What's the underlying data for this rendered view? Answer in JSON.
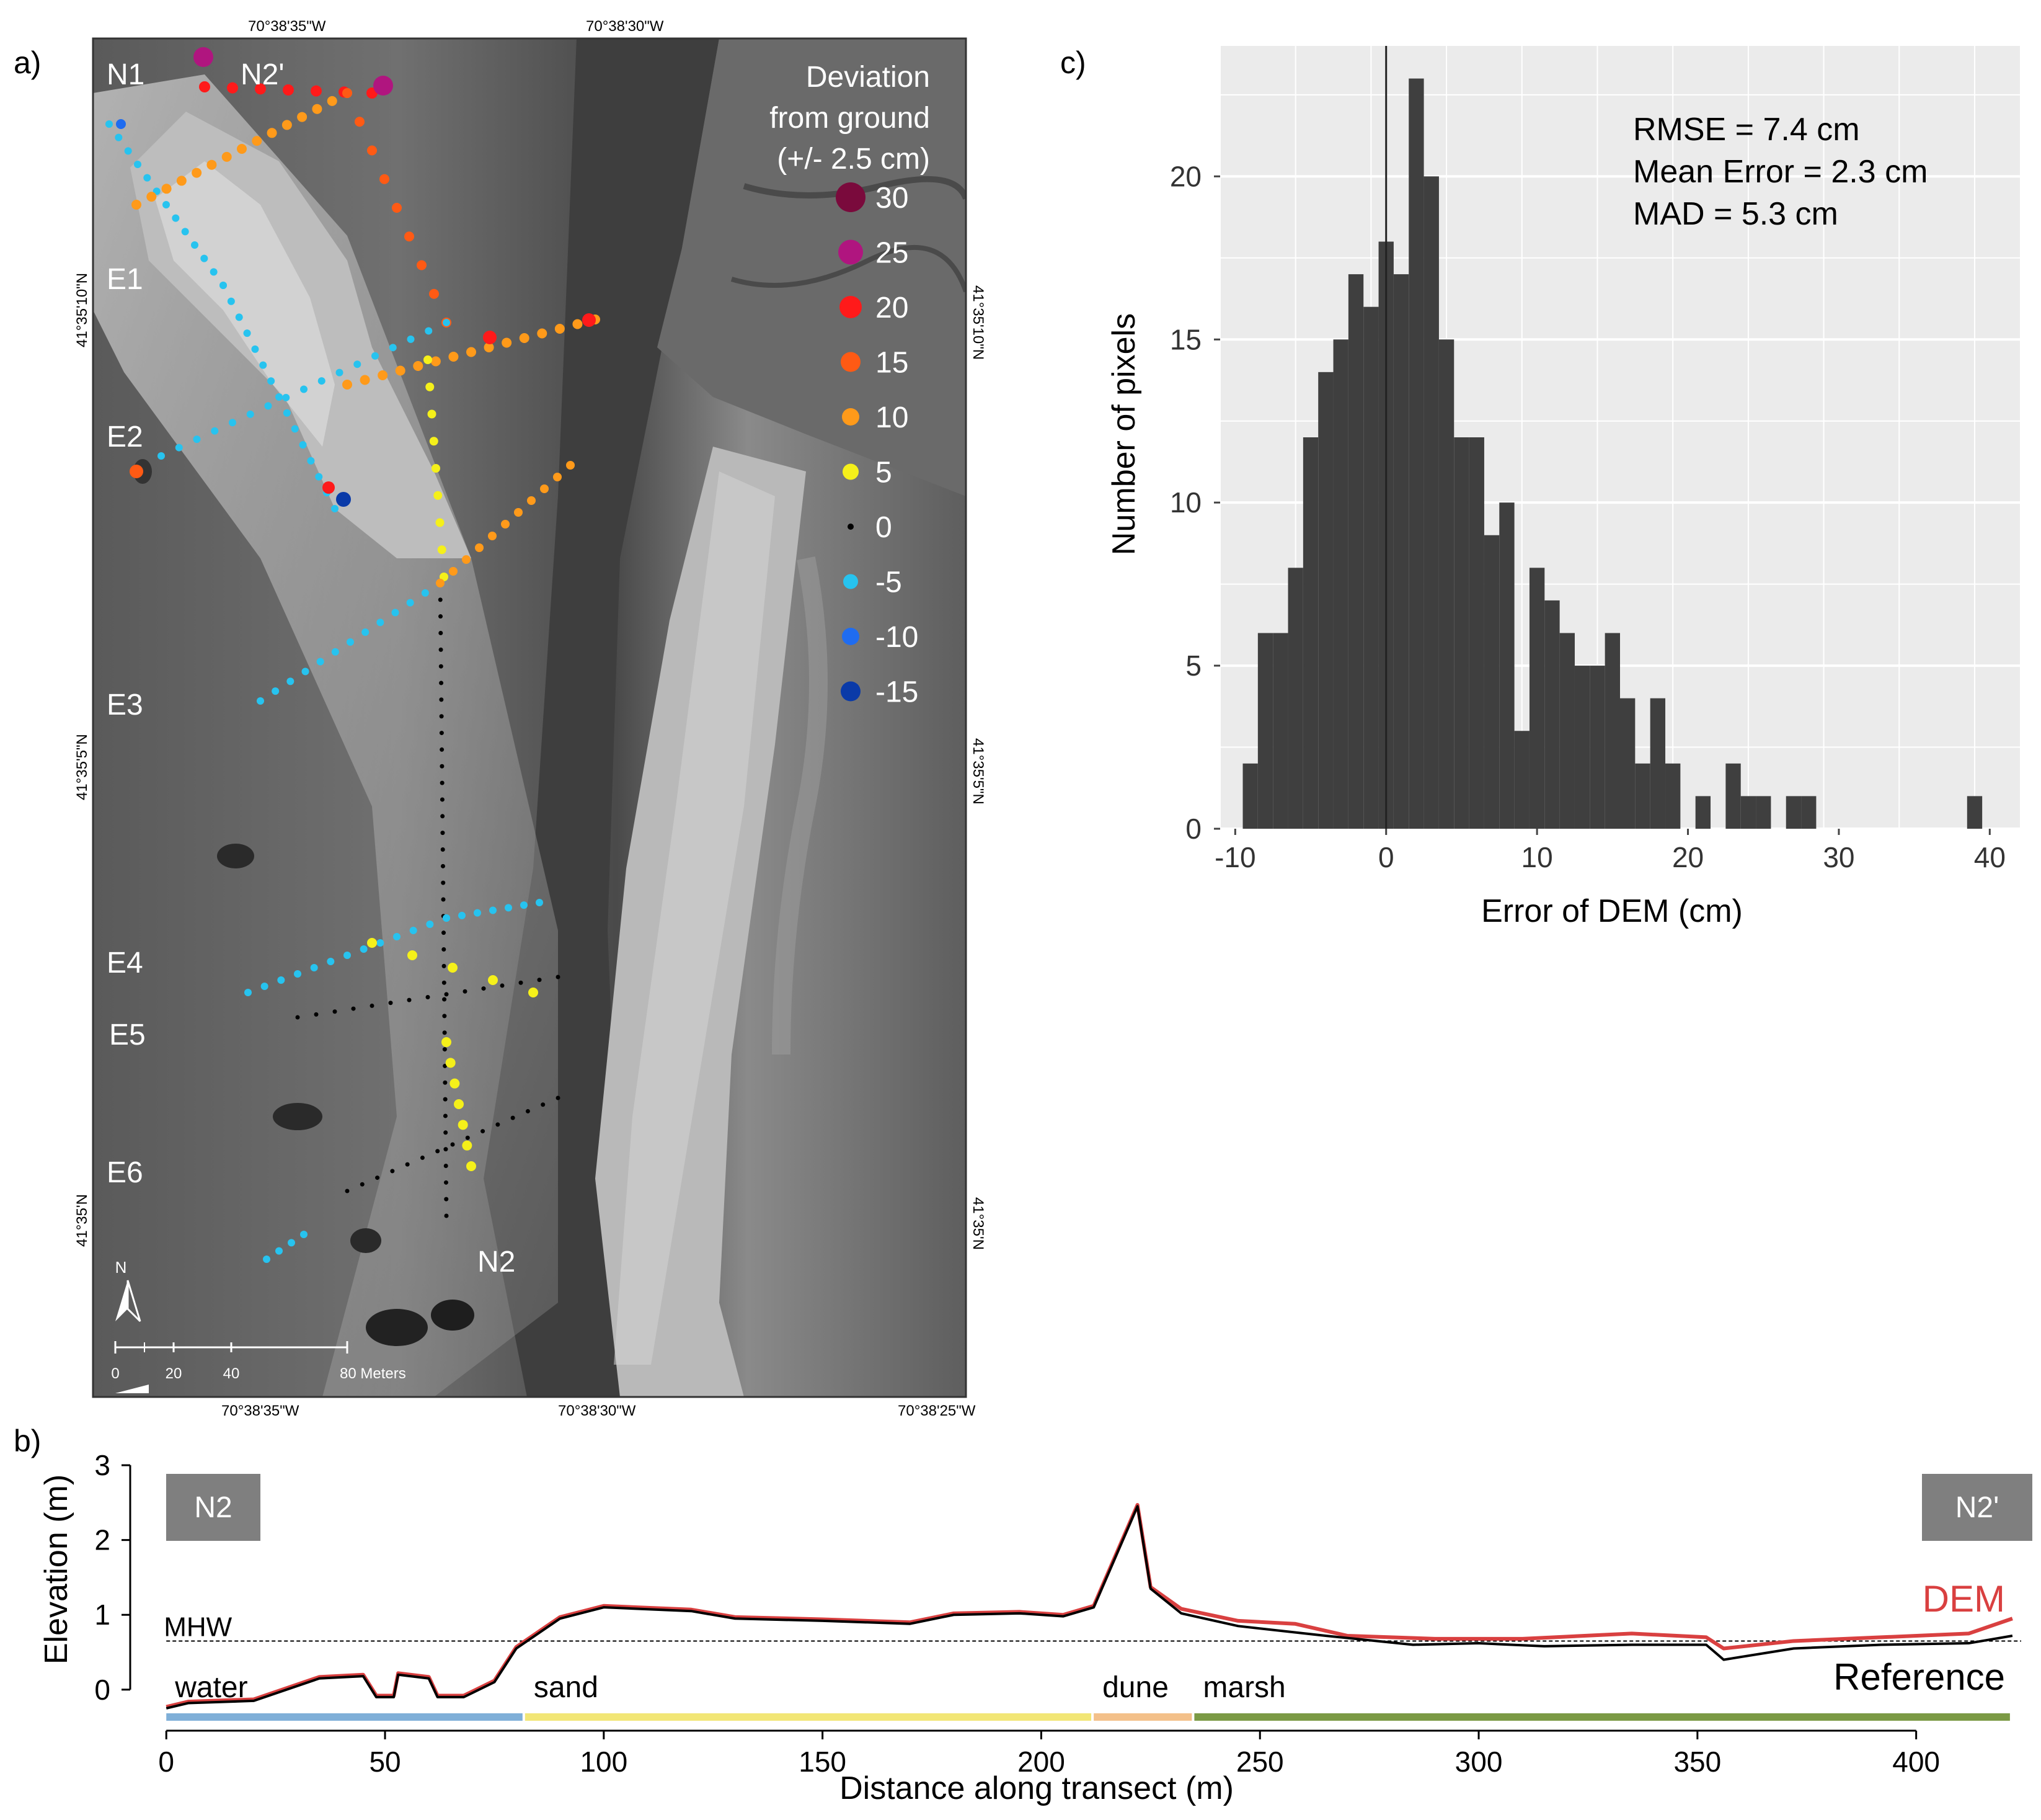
{
  "panel_labels": {
    "a": "a)",
    "b": "b)",
    "c": "c)"
  },
  "map": {
    "coords": {
      "top_left": "70°38'35\"W",
      "top_right": "70°38'30\"W",
      "bottom_left": "70°38'35\"W",
      "bottom_mid": "70°38'30\"W",
      "bottom_right": "70°38'25\"W",
      "left_top": "41°35'10\"N",
      "left_mid": "41°35'5\"N",
      "left_bottom": "41°35'N",
      "right_top": "41°35'10\"N",
      "right_mid": "41°35'5\"N",
      "right_bottom": "41°35'N"
    },
    "transect_labels": {
      "n1": "N1",
      "n2p": "N2'",
      "e1": "E1",
      "e2": "E2",
      "e3": "E3",
      "e4": "E4",
      "e5": "E5",
      "e6": "E6",
      "n2": "N2"
    },
    "legend": {
      "title1": "Deviation",
      "title2": "from ground",
      "title3": "(+/- 2.5 cm)",
      "items": [
        {
          "label": "30",
          "color": "#7a0a3c"
        },
        {
          "label": "25",
          "color": "#b0157f"
        },
        {
          "label": "20",
          "color": "#ff1a1a"
        },
        {
          "label": "15",
          "color": "#ff5a14"
        },
        {
          "label": "10",
          "color": "#ff9a1a"
        },
        {
          "label": "5",
          "color": "#f5f01a"
        },
        {
          "label": "0",
          "color": "#000000"
        },
        {
          "label": "-5",
          "color": "#27c3ef"
        },
        {
          "label": "-10",
          "color": "#1f6cf0"
        },
        {
          "label": "-15",
          "color": "#0a3aa8"
        }
      ]
    },
    "north_label": "N",
    "scale": {
      "ticks": [
        "0",
        "20",
        "40"
      ],
      "end_label": "80 Meters"
    }
  },
  "chart_data": [
    {
      "type": "histogram",
      "panel": "c",
      "xlabel": "Error of DEM (cm)",
      "ylabel": "Number of pixels",
      "xlim": [
        -11,
        42
      ],
      "ylim": [
        0,
        24
      ],
      "xticks": [
        "-10",
        "0",
        "10",
        "20",
        "30",
        "40"
      ],
      "yticks": [
        "0",
        "5",
        "10",
        "15",
        "20"
      ],
      "bin_width": 1,
      "bin_start": -9.5,
      "counts": [
        2,
        6,
        6,
        8,
        12,
        14,
        15,
        17,
        16,
        18,
        17,
        23,
        20,
        15,
        12,
        12,
        9,
        10,
        3,
        8,
        7,
        6,
        5,
        5,
        6,
        4,
        2,
        4,
        2,
        0,
        1,
        0,
        2,
        1,
        1,
        0,
        1,
        1,
        0,
        0,
        0,
        0,
        0,
        0,
        0,
        0,
        0,
        0,
        1
      ],
      "annotations": [
        "RMSE = 7.4 cm",
        "Mean Error = 2.3 cm",
        "MAD = 5.3 cm"
      ]
    },
    {
      "type": "line",
      "panel": "b",
      "xlabel": "Distance along transect (m)",
      "ylabel": "Elevation (m)",
      "xlim": [
        -4,
        424
      ],
      "ylim": [
        -0.3,
        3.1
      ],
      "xticks": [
        "0",
        "50",
        "100",
        "150",
        "200",
        "250",
        "300",
        "350",
        "400"
      ],
      "yticks": [
        "0",
        "1",
        "2",
        "3"
      ],
      "series": [
        {
          "name": "Reference",
          "color": "#000000",
          "x": [
            0,
            5,
            20,
            35,
            45,
            48,
            52,
            53,
            60,
            62,
            68,
            75,
            80,
            90,
            100,
            120,
            130,
            150,
            170,
            180,
            195,
            205,
            212,
            222,
            225,
            232,
            245,
            265,
            285,
            300,
            315,
            335,
            352,
            356,
            372,
            392,
            412,
            422
          ],
          "y": [
            -0.25,
            -0.18,
            -0.15,
            0.15,
            0.18,
            -0.1,
            -0.1,
            0.2,
            0.15,
            -0.1,
            -0.1,
            0.1,
            0.55,
            0.95,
            1.1,
            1.05,
            0.95,
            0.92,
            0.88,
            1.0,
            1.02,
            0.98,
            1.1,
            2.45,
            1.35,
            1.02,
            0.85,
            0.72,
            0.6,
            0.62,
            0.58,
            0.6,
            0.6,
            0.4,
            0.55,
            0.6,
            0.62,
            0.72
          ]
        },
        {
          "name": "DEM",
          "color": "#d94040",
          "x": [
            0,
            5,
            20,
            35,
            45,
            48,
            52,
            53,
            60,
            62,
            68,
            75,
            80,
            90,
            100,
            120,
            130,
            150,
            170,
            180,
            195,
            205,
            212,
            222,
            225,
            232,
            245,
            258,
            270,
            290,
            310,
            335,
            352,
            356,
            372,
            392,
            412,
            422
          ],
          "y": [
            -0.23,
            -0.16,
            -0.13,
            0.17,
            0.2,
            -0.08,
            -0.08,
            0.22,
            0.17,
            -0.08,
            -0.08,
            0.12,
            0.57,
            0.97,
            1.12,
            1.07,
            0.97,
            0.94,
            0.9,
            1.02,
            1.04,
            1.0,
            1.12,
            2.47,
            1.37,
            1.08,
            0.92,
            0.88,
            0.72,
            0.68,
            0.68,
            0.75,
            0.7,
            0.55,
            0.65,
            0.7,
            0.75,
            0.95
          ]
        }
      ],
      "reference_line": {
        "label": "MHW",
        "y": 0.65
      },
      "endpoints": {
        "left": "N2",
        "right": "N2'"
      },
      "zones": [
        {
          "label": "water",
          "from": 0,
          "to": 82,
          "color": "#7fafd8"
        },
        {
          "label": "sand",
          "from": 82,
          "to": 212,
          "color": "#f2e676"
        },
        {
          "label": "dune",
          "from": 212,
          "to": 235,
          "color": "#f3c08a"
        },
        {
          "label": "marsh",
          "from": 235,
          "to": 422,
          "color": "#7b9a45"
        }
      ],
      "legend_labels": {
        "dem": "DEM",
        "reference": "Reference"
      }
    }
  ]
}
